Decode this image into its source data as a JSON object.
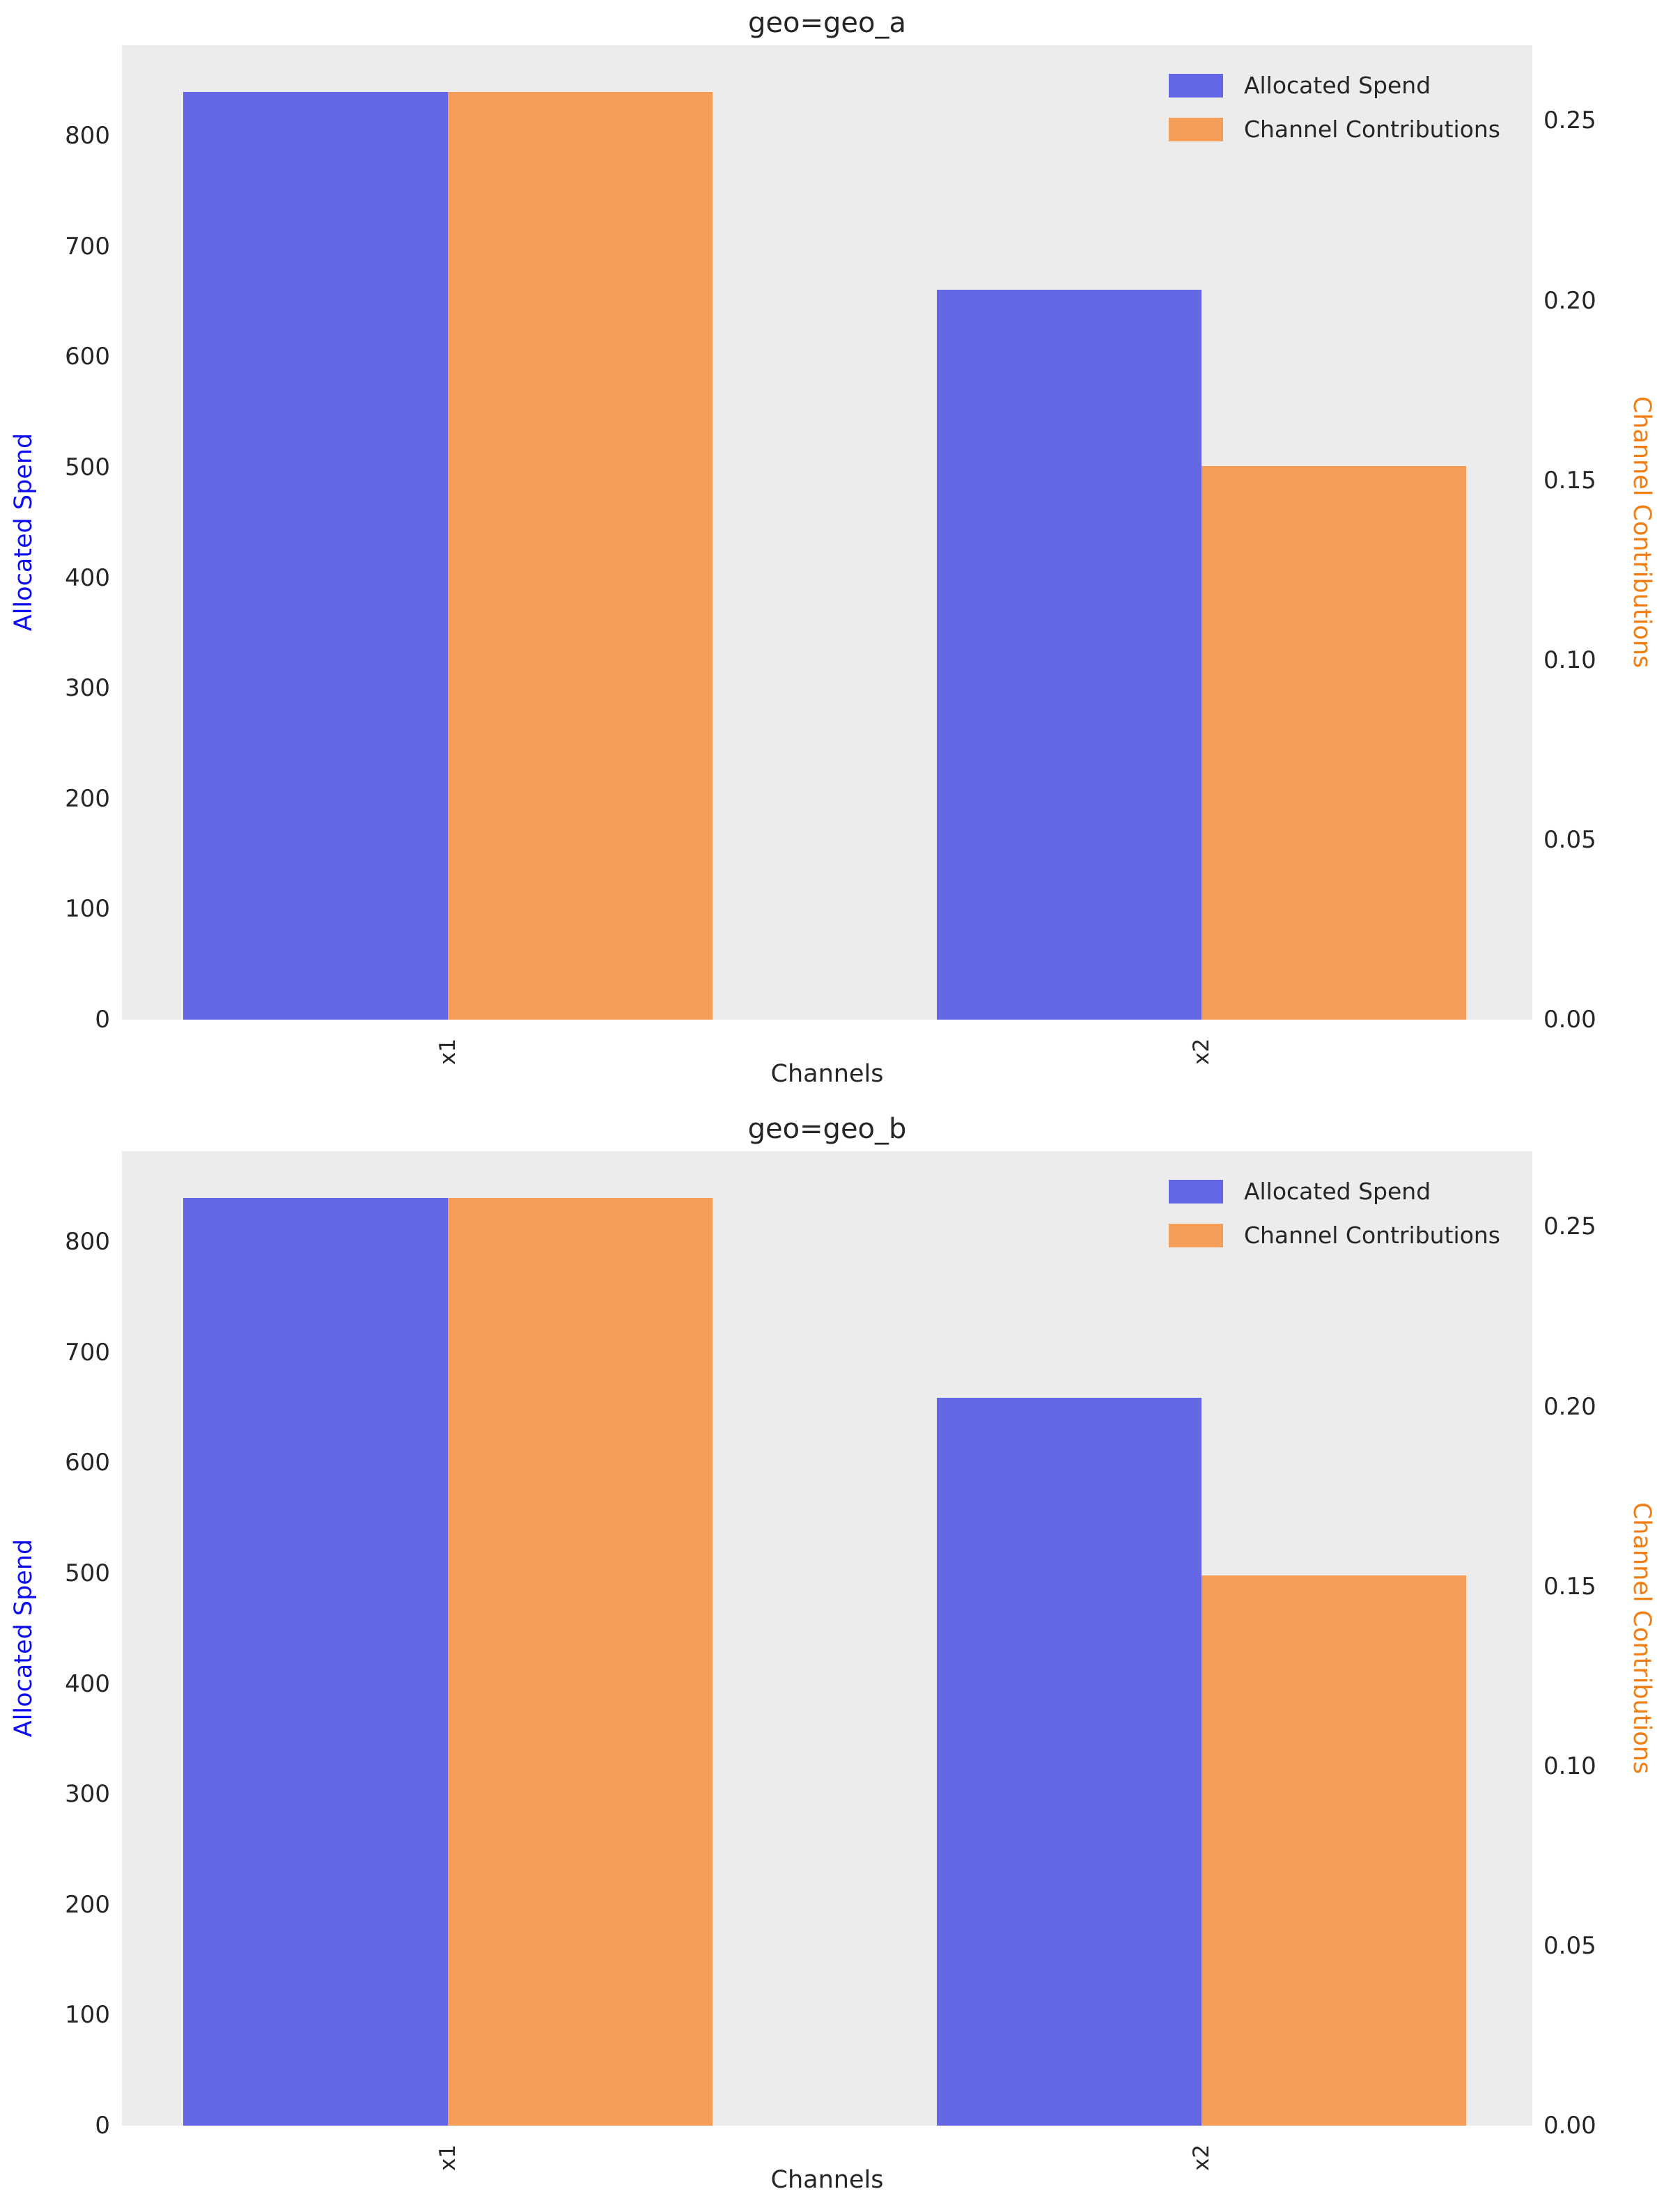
{
  "colors": {
    "figure_background": "#ffffff",
    "plot_background": "#ececec",
    "tick_text": "#262626",
    "spend_bar": "#6367e6",
    "contribution_bar": "#f59e5a",
    "spend_axis_label": "#0d0df0",
    "contribution_axis_label": "#f07e14"
  },
  "chart_data": [
    {
      "type": "bar",
      "title": "geo=geo_a",
      "xlabel": "Channels",
      "categories": [
        "x1",
        "x2"
      ],
      "series": [
        {
          "name": "Allocated Spend",
          "axis": "left",
          "color": "#6367e6",
          "values": [
            840,
            661
          ]
        },
        {
          "name": "Channel Contributions",
          "axis": "right",
          "color": "#f59e5a",
          "values": [
            0.258,
            0.154
          ]
        }
      ],
      "left_axis": {
        "label": "Allocated Spend",
        "color": "#0d0df0",
        "ticks": [
          "0",
          "100",
          "200",
          "300",
          "400",
          "500",
          "600",
          "700",
          "800"
        ],
        "min": 0,
        "max": 882
      },
      "right_axis": {
        "label": "Channel Contributions",
        "color": "#f07e14",
        "ticks": [
          "0.00",
          "0.05",
          "0.10",
          "0.15",
          "0.20",
          "0.25"
        ],
        "min": 0,
        "max": 0.271
      },
      "legend": {
        "position": "upper right",
        "entries": [
          "Allocated Spend",
          "Channel Contributions"
        ]
      },
      "grid": false
    },
    {
      "type": "bar",
      "title": "geo=geo_b",
      "xlabel": "Channels",
      "categories": [
        "x1",
        "x2"
      ],
      "series": [
        {
          "name": "Allocated Spend",
          "axis": "left",
          "color": "#6367e6",
          "values": [
            840,
            659
          ]
        },
        {
          "name": "Channel Contributions",
          "axis": "right",
          "color": "#f59e5a",
          "values": [
            0.258,
            0.153
          ]
        }
      ],
      "left_axis": {
        "label": "Allocated Spend",
        "color": "#0d0df0",
        "ticks": [
          "0",
          "100",
          "200",
          "300",
          "400",
          "500",
          "600",
          "700",
          "800"
        ],
        "min": 0,
        "max": 882
      },
      "right_axis": {
        "label": "Channel Contributions",
        "color": "#f07e14",
        "ticks": [
          "0.00",
          "0.05",
          "0.10",
          "0.15",
          "0.20",
          "0.25"
        ],
        "min": 0,
        "max": 0.271
      },
      "legend": {
        "position": "upper right",
        "entries": [
          "Allocated Spend",
          "Channel Contributions"
        ]
      },
      "grid": false
    }
  ]
}
